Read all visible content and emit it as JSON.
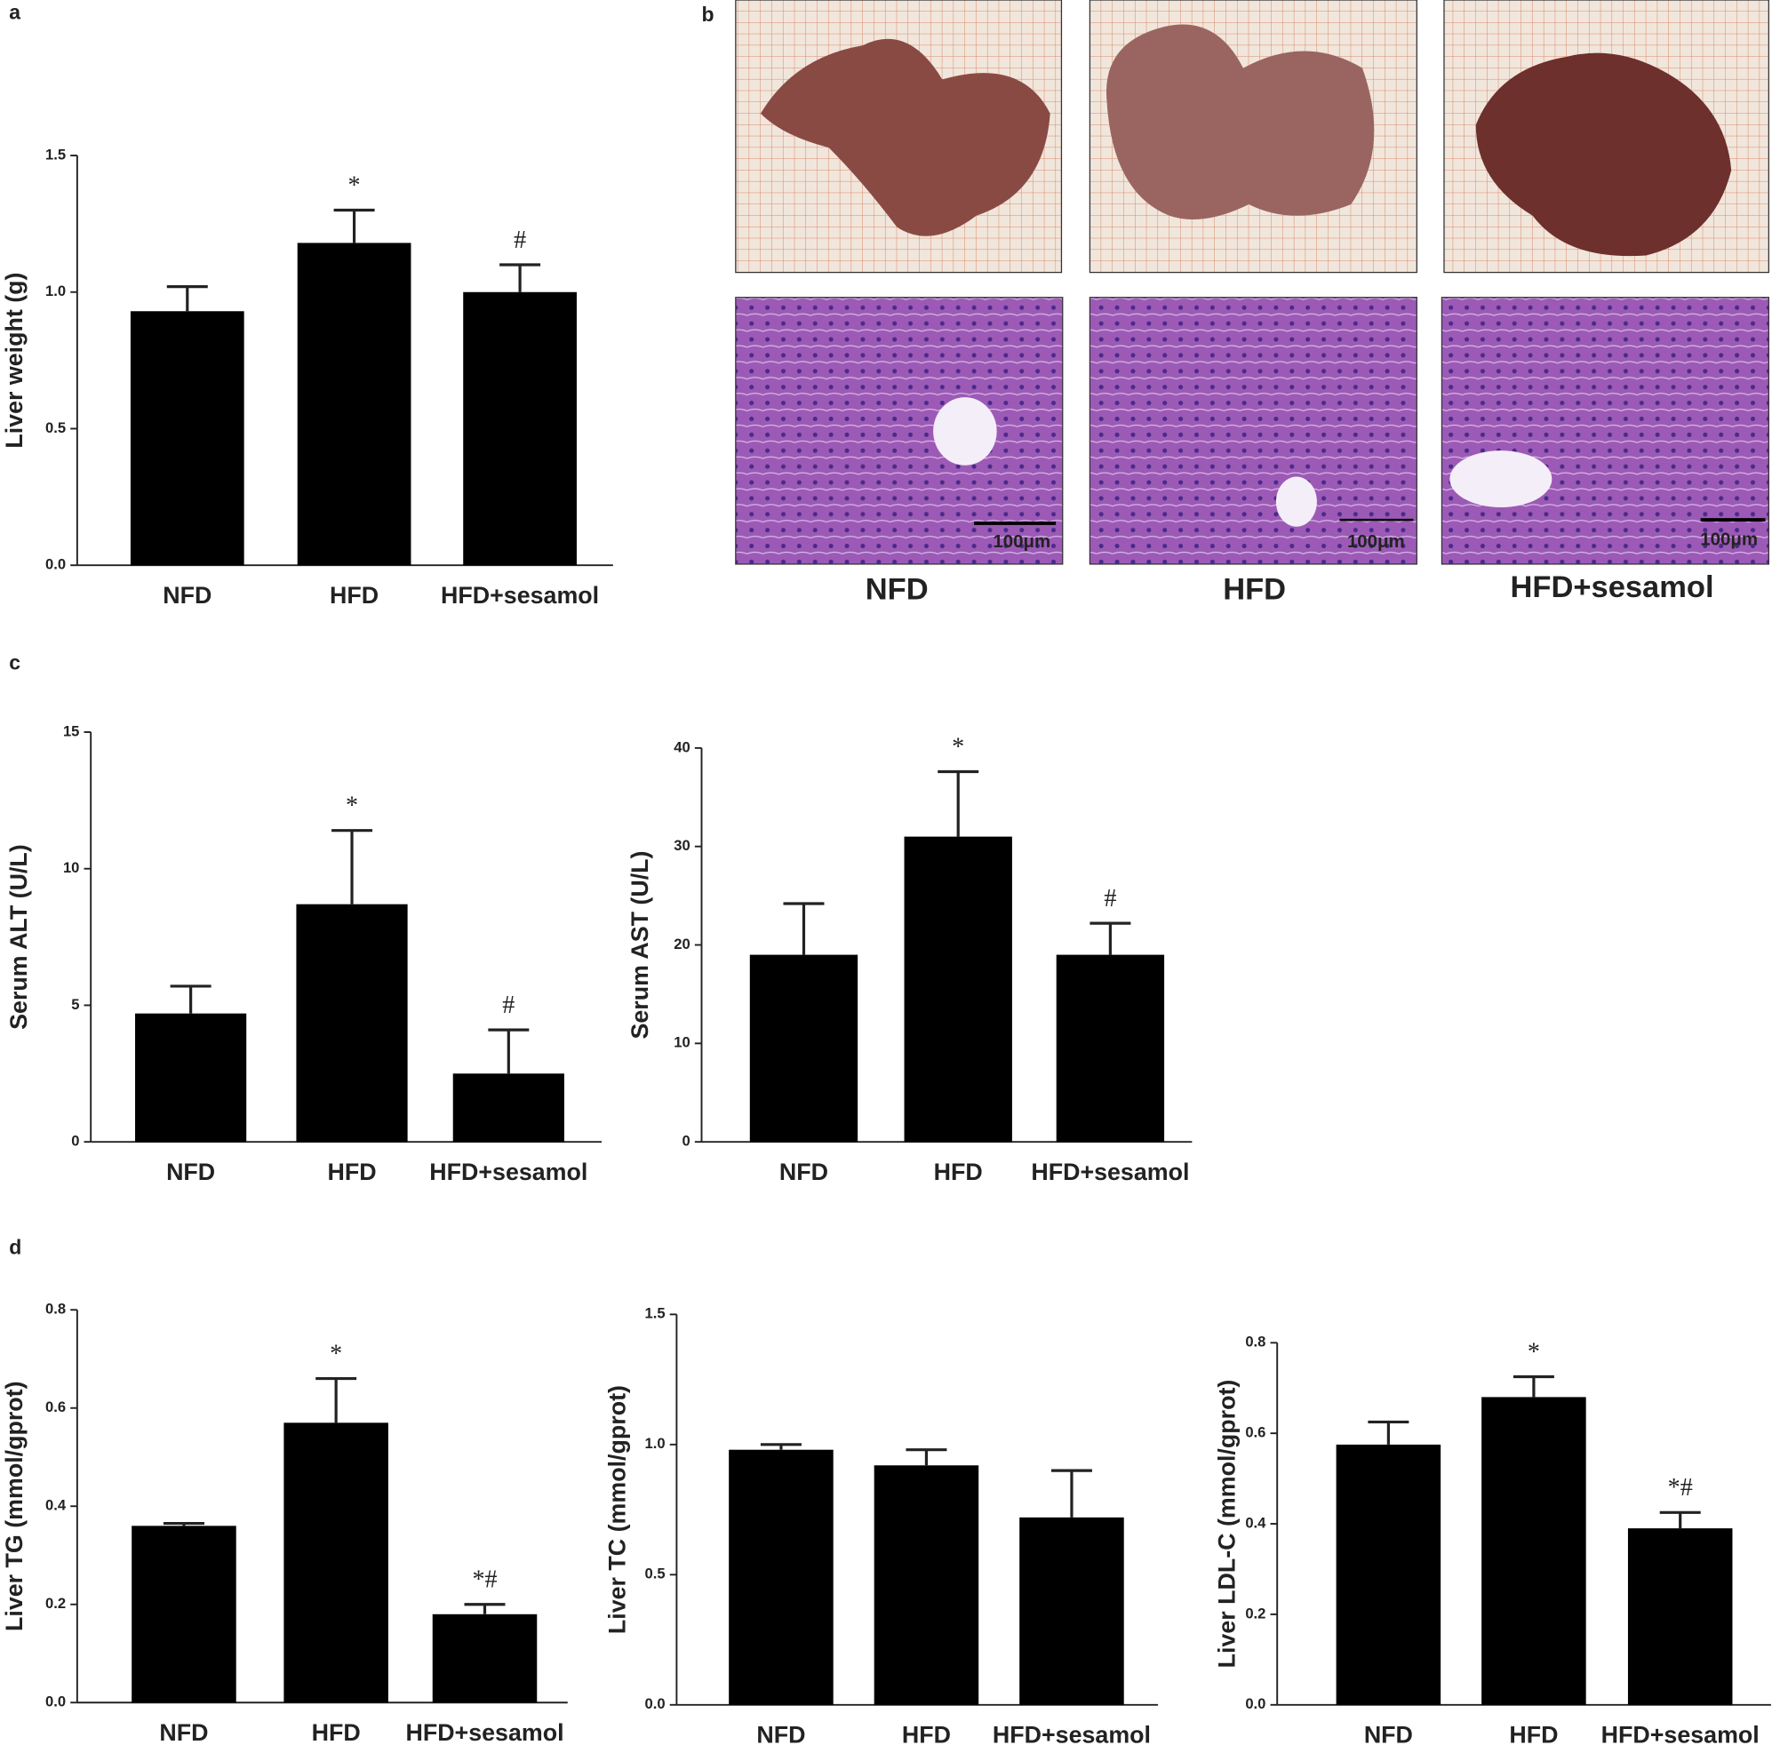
{
  "panel_labels": [
    "a",
    "b",
    "c",
    "d"
  ],
  "panel_b": {
    "labels": [
      "NFD",
      "HFD",
      "HFD+sesamol"
    ],
    "scale_bar": "100μm"
  },
  "chart_data": [
    {
      "type": "bar",
      "ylabel": "Liver weight (g)",
      "categories": [
        "NFD",
        "HFD",
        "HFD+sesamol"
      ],
      "values": [
        0.93,
        1.18,
        1.0
      ],
      "errors": [
        0.09,
        0.12,
        0.1
      ],
      "annotations": [
        null,
        "*",
        "#"
      ],
      "color": "#000000",
      "ylim": [
        0,
        1.5
      ],
      "yticks": [
        {
          "value": 0,
          "label": "0.0"
        },
        0.5,
        {
          "value": 1,
          "label": "1.0"
        },
        1.5
      ]
    },
    {
      "type": "bar",
      "ylabel": "Serum ALT (U/L)",
      "categories": [
        "NFD",
        "HFD",
        "HFD+sesamol"
      ],
      "values": [
        4.7,
        8.7,
        2.5
      ],
      "errors": [
        1.0,
        2.7,
        1.6
      ],
      "annotations": [
        null,
        "*",
        "#"
      ],
      "color": "#000000",
      "ylim": [
        0,
        15
      ],
      "yticks": [
        0,
        5,
        10,
        15
      ]
    },
    {
      "type": "bar",
      "ylabel": "Serum AST (U/L)",
      "categories": [
        "NFD",
        "HFD",
        "HFD+sesamol"
      ],
      "values": [
        19,
        31,
        19
      ],
      "errors": [
        5.2,
        6.6,
        3.2
      ],
      "annotations": [
        null,
        "*",
        "#"
      ],
      "color": "#000000",
      "ylim": [
        0,
        40
      ],
      "yticks": [
        0,
        10,
        20,
        30,
        40
      ]
    },
    {
      "type": "bar",
      "ylabel": "Liver TG (mmol/gprot)",
      "categories": [
        "NFD",
        "HFD",
        "HFD+sesamol"
      ],
      "values": [
        0.36,
        0.57,
        0.18
      ],
      "errors": [
        0.005,
        0.09,
        0.02
      ],
      "annotations": [
        null,
        "*",
        "*#"
      ],
      "color": "#000000",
      "ylim": [
        0,
        0.8
      ],
      "yticks": [
        {
          "value": 0,
          "label": "0.0"
        },
        0.2,
        0.4,
        0.6,
        0.8
      ]
    },
    {
      "type": "bar",
      "ylabel": "Liver TC (mmol/gprot)",
      "categories": [
        "NFD",
        "HFD",
        "HFD+sesamol"
      ],
      "values": [
        0.98,
        0.92,
        0.72
      ],
      "errors": [
        0.02,
        0.06,
        0.18
      ],
      "color": "#000000",
      "ylim": [
        0,
        1.5
      ],
      "yticks": [
        {
          "value": 0,
          "label": "0.0"
        },
        0.5,
        {
          "value": 1,
          "label": "1.0"
        },
        1.5
      ]
    },
    {
      "type": "bar",
      "ylabel": "Liver LDL-C (mmol/gprot)",
      "categories": [
        "NFD",
        "HFD",
        "HFD+sesamol"
      ],
      "values": [
        0.575,
        0.68,
        0.39
      ],
      "errors": [
        0.05,
        0.045,
        0.035
      ],
      "annotations": [
        null,
        "*",
        "*#"
      ],
      "color": "#000000",
      "ylim": [
        0,
        0.8
      ],
      "yticks": [
        {
          "value": 0,
          "label": "0.0"
        },
        0.2,
        0.4,
        0.6,
        0.8
      ]
    }
  ]
}
